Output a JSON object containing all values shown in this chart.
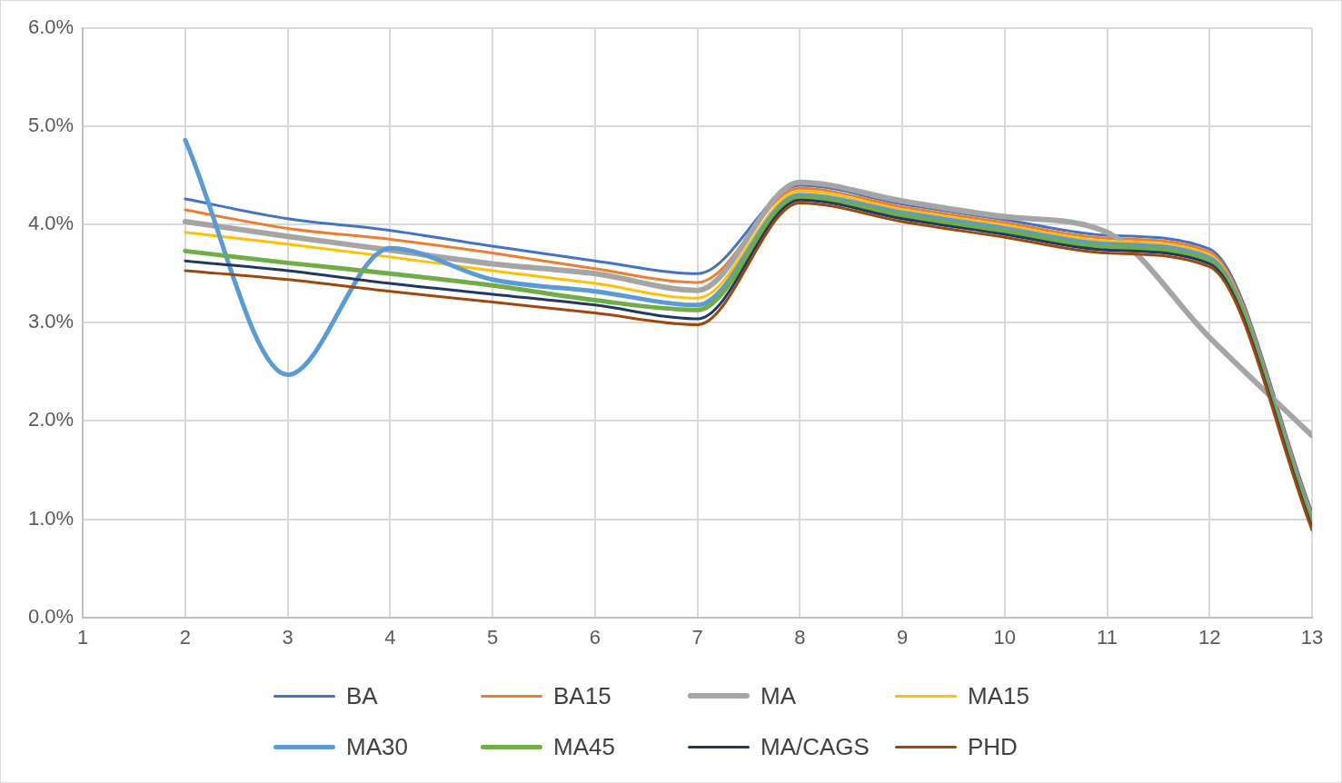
{
  "chart_data": {
    "type": "line",
    "x": [
      2,
      3,
      4,
      5,
      6,
      7,
      8,
      9,
      10,
      11,
      12,
      13
    ],
    "xlim": [
      1,
      13
    ],
    "xticks": [
      1,
      2,
      3,
      4,
      5,
      6,
      7,
      8,
      9,
      10,
      11,
      12,
      13
    ],
    "ylim": [
      0,
      6
    ],
    "yticks": [
      {
        "value": 0,
        "label": "0.0%"
      },
      {
        "value": 1,
        "label": "1.0%"
      },
      {
        "value": 2,
        "label": "2.0%"
      },
      {
        "value": 3,
        "label": "3.0%"
      },
      {
        "value": 4,
        "label": "4.0%"
      },
      {
        "value": 5,
        "label": "5.0%"
      },
      {
        "value": 6,
        "label": "6.0%"
      }
    ],
    "grid": true,
    "legend": "bottom",
    "marker": "none",
    "line_style": "solid",
    "series": [
      {
        "name": "BA",
        "color": "#4472c4",
        "values": [
          4.26,
          4.06,
          3.94,
          3.78,
          3.63,
          3.5,
          4.4,
          4.21,
          4.05,
          3.89,
          3.75,
          1.07
        ]
      },
      {
        "name": "BA15",
        "color": "#ed7d31",
        "values": [
          4.15,
          3.96,
          3.85,
          3.71,
          3.55,
          3.41,
          4.37,
          4.18,
          4.02,
          3.86,
          3.72,
          1.04
        ]
      },
      {
        "name": "MA",
        "color": "#a5a5a5",
        "values": [
          4.03,
          3.88,
          3.74,
          3.6,
          3.5,
          3.33,
          4.43,
          4.24,
          4.08,
          3.92,
          2.85,
          1.85
        ]
      },
      {
        "name": "MA15",
        "color": "#ffc000",
        "values": [
          3.92,
          3.8,
          3.67,
          3.53,
          3.4,
          3.25,
          4.34,
          4.15,
          3.99,
          3.83,
          3.69,
          1.01
        ]
      },
      {
        "name": "MA30",
        "color": "#5b9bd5",
        "values": [
          4.86,
          2.47,
          3.76,
          3.44,
          3.32,
          3.18,
          4.3,
          4.12,
          3.96,
          3.8,
          3.66,
          0.98
        ]
      },
      {
        "name": "MA45",
        "color": "#70ad47",
        "values": [
          3.73,
          3.61,
          3.5,
          3.38,
          3.23,
          3.13,
          4.28,
          4.09,
          3.93,
          3.77,
          3.63,
          0.95
        ]
      },
      {
        "name": "MA/CAGS",
        "color": "#203864",
        "values": [
          3.63,
          3.53,
          3.4,
          3.29,
          3.18,
          3.04,
          4.25,
          4.06,
          3.9,
          3.74,
          3.6,
          0.92
        ]
      },
      {
        "name": "PHD",
        "color": "#9e480e",
        "values": [
          3.53,
          3.44,
          3.32,
          3.21,
          3.1,
          2.98,
          4.22,
          4.03,
          3.87,
          3.71,
          3.57,
          0.89
        ]
      }
    ]
  }
}
